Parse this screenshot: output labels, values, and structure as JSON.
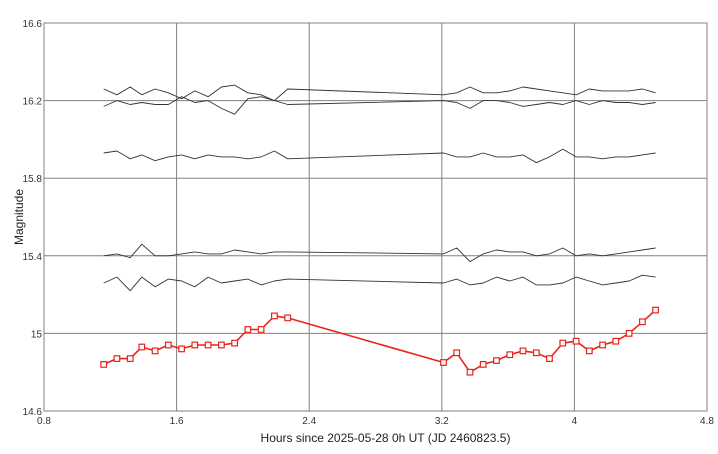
{
  "chart_data": {
    "type": "line",
    "title": "",
    "xlabel": "Hours since 2025-05-28 0h UT (JD 2460823.5)",
    "ylabel": "Magnitude",
    "xlim": [
      0.8,
      4.8
    ],
    "ylim": [
      16.6,
      14.6
    ],
    "y_inverted": true,
    "x_ticks": [
      "0.8",
      "1.6",
      "2.4",
      "3.2",
      "4",
      "4.8"
    ],
    "x_tick_values": [
      0.8,
      1.6,
      2.4,
      3.2,
      4.0,
      4.8
    ],
    "y_ticks": [
      "14.6",
      "15",
      "15.4",
      "15.8",
      "16.2",
      "16.6"
    ],
    "y_tick_values": [
      14.6,
      15.0,
      15.4,
      15.8,
      16.2,
      16.6
    ],
    "grid": true,
    "colors": {
      "target": "#e8241c",
      "comparison": "#333333",
      "grid": "#808080",
      "frame": "#808080"
    },
    "series": [
      {
        "role": "target",
        "color": "#e8241c",
        "marker": "square",
        "x": [
          1.16,
          1.24,
          1.32,
          1.39,
          1.47,
          1.55,
          1.63,
          1.71,
          1.79,
          1.87,
          1.95,
          2.03,
          2.11,
          2.19,
          2.27,
          3.21,
          3.29,
          3.37,
          3.45,
          3.53,
          3.61,
          3.69,
          3.77,
          3.85,
          3.93,
          4.01,
          4.09,
          4.17,
          4.25,
          4.33,
          4.41,
          4.49
        ],
        "y": [
          14.84,
          14.87,
          14.87,
          14.93,
          14.91,
          14.94,
          14.92,
          14.94,
          14.94,
          14.94,
          14.95,
          15.02,
          15.02,
          15.09,
          15.08,
          14.85,
          14.9,
          14.8,
          14.84,
          14.86,
          14.89,
          14.91,
          14.9,
          14.87,
          14.95,
          14.96,
          14.91,
          14.94,
          14.96,
          15.0,
          15.06,
          15.12
        ]
      },
      {
        "role": "comparison",
        "color": "#333333",
        "x": [
          1.16,
          1.24,
          1.32,
          1.39,
          1.47,
          1.55,
          1.63,
          1.71,
          1.79,
          1.87,
          1.95,
          2.03,
          2.11,
          2.19,
          2.27,
          3.21,
          3.29,
          3.37,
          3.45,
          3.53,
          3.61,
          3.69,
          3.77,
          3.85,
          3.93,
          4.01,
          4.09,
          4.17,
          4.25,
          4.33,
          4.41,
          4.49
        ],
        "y": [
          15.26,
          15.29,
          15.22,
          15.29,
          15.24,
          15.28,
          15.27,
          15.24,
          15.29,
          15.26,
          15.27,
          15.28,
          15.25,
          15.27,
          15.28,
          15.26,
          15.28,
          15.25,
          15.26,
          15.29,
          15.27,
          15.29,
          15.25,
          15.25,
          15.26,
          15.29,
          15.27,
          15.25,
          15.26,
          15.27,
          15.3,
          15.29
        ]
      },
      {
        "role": "comparison",
        "color": "#333333",
        "x": [
          1.16,
          1.24,
          1.32,
          1.39,
          1.47,
          1.55,
          1.63,
          1.71,
          1.79,
          1.87,
          1.95,
          2.03,
          2.11,
          2.19,
          2.27,
          3.21,
          3.29,
          3.37,
          3.45,
          3.53,
          3.61,
          3.69,
          3.77,
          3.85,
          3.93,
          4.01,
          4.09,
          4.17,
          4.25,
          4.33,
          4.41,
          4.49
        ],
        "y": [
          15.4,
          15.41,
          15.39,
          15.46,
          15.4,
          15.4,
          15.41,
          15.42,
          15.41,
          15.41,
          15.43,
          15.42,
          15.41,
          15.42,
          15.42,
          15.41,
          15.44,
          15.37,
          15.41,
          15.43,
          15.42,
          15.42,
          15.4,
          15.41,
          15.44,
          15.4,
          15.41,
          15.4,
          15.41,
          15.42,
          15.43,
          15.44
        ]
      },
      {
        "role": "comparison",
        "color": "#333333",
        "x": [
          1.16,
          1.24,
          1.32,
          1.39,
          1.47,
          1.55,
          1.63,
          1.71,
          1.79,
          1.87,
          1.95,
          2.03,
          2.11,
          2.19,
          2.27,
          3.21,
          3.29,
          3.37,
          3.45,
          3.53,
          3.61,
          3.69,
          3.77,
          3.85,
          3.93,
          4.01,
          4.09,
          4.17,
          4.25,
          4.33,
          4.41,
          4.49
        ],
        "y": [
          15.93,
          15.94,
          15.9,
          15.92,
          15.89,
          15.91,
          15.92,
          15.9,
          15.92,
          15.91,
          15.91,
          15.9,
          15.91,
          15.94,
          15.9,
          15.93,
          15.91,
          15.91,
          15.93,
          15.91,
          15.91,
          15.92,
          15.88,
          15.91,
          15.95,
          15.91,
          15.91,
          15.9,
          15.91,
          15.91,
          15.92,
          15.93
        ]
      },
      {
        "role": "comparison",
        "color": "#333333",
        "x": [
          1.16,
          1.24,
          1.32,
          1.39,
          1.47,
          1.55,
          1.63,
          1.71,
          1.79,
          1.87,
          1.95,
          2.03,
          2.11,
          2.19,
          2.27,
          3.21,
          3.29,
          3.37,
          3.45,
          3.53,
          3.61,
          3.69,
          3.77,
          3.85,
          3.93,
          4.01,
          4.09,
          4.17,
          4.25,
          4.33,
          4.41,
          4.49
        ],
        "y": [
          16.17,
          16.2,
          16.18,
          16.19,
          16.18,
          16.18,
          16.22,
          16.19,
          16.2,
          16.16,
          16.13,
          16.21,
          16.22,
          16.2,
          16.18,
          16.2,
          16.19,
          16.16,
          16.2,
          16.2,
          16.19,
          16.17,
          16.18,
          16.19,
          16.18,
          16.2,
          16.18,
          16.2,
          16.19,
          16.19,
          16.18,
          16.19
        ]
      },
      {
        "role": "comparison",
        "color": "#333333",
        "x": [
          1.16,
          1.24,
          1.32,
          1.39,
          1.47,
          1.55,
          1.63,
          1.71,
          1.79,
          1.87,
          1.95,
          2.03,
          2.11,
          2.19,
          2.27,
          3.21,
          3.29,
          3.37,
          3.45,
          3.53,
          3.61,
          3.69,
          3.77,
          3.85,
          3.93,
          4.01,
          4.09,
          4.17,
          4.25,
          4.33,
          4.41,
          4.49
        ],
        "y": [
          16.26,
          16.23,
          16.27,
          16.23,
          16.26,
          16.24,
          16.21,
          16.25,
          16.22,
          16.27,
          16.28,
          16.24,
          16.23,
          16.2,
          16.26,
          16.23,
          16.24,
          16.27,
          16.24,
          16.24,
          16.25,
          16.27,
          16.26,
          16.25,
          16.24,
          16.23,
          16.26,
          16.25,
          16.25,
          16.25,
          16.26,
          16.24
        ]
      }
    ]
  }
}
